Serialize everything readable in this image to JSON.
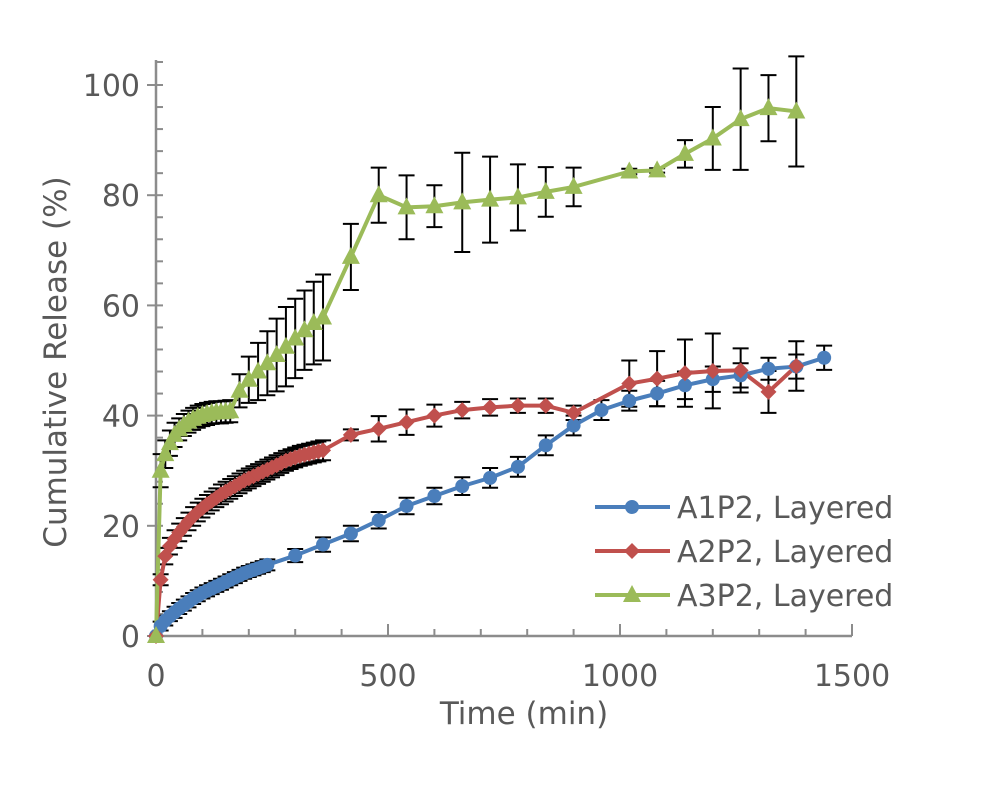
{
  "chart_data": {
    "type": "line",
    "title": "",
    "xlabel": "Time (min)",
    "ylabel": "Cumulative Release (%)",
    "xlim": [
      0,
      1500
    ],
    "ylim": [
      0,
      100
    ],
    "x_ticks": [
      "0",
      "500",
      "1000",
      "1500"
    ],
    "x_tick_values": [
      0,
      500,
      1000,
      1500
    ],
    "x_minor_step": 100,
    "y_ticks": [
      "0",
      "20",
      "40",
      "60",
      "80",
      "100"
    ],
    "y_tick_values": [
      0,
      20,
      40,
      60,
      80,
      100
    ],
    "y_minor_step": 4,
    "grid": false,
    "legend_position": "bottom-right",
    "series": [
      {
        "name": "A1P2, Layered",
        "color": "#4a7ebb",
        "marker": "circle",
        "x": [
          0,
          10,
          20,
          30,
          40,
          50,
          60,
          70,
          80,
          90,
          100,
          110,
          120,
          130,
          140,
          150,
          160,
          170,
          180,
          190,
          200,
          210,
          220,
          230,
          240,
          300,
          360,
          420,
          480,
          540,
          600,
          660,
          720,
          780,
          840,
          900,
          960,
          1020,
          1080,
          1140,
          1200,
          1260,
          1320,
          1380,
          1440
        ],
        "y": [
          0,
          1.8,
          2.8,
          3.6,
          4.3,
          5.0,
          5.6,
          6.2,
          6.8,
          7.3,
          7.8,
          8.2,
          8.6,
          9.0,
          9.4,
          9.8,
          10.2,
          10.6,
          11.0,
          11.4,
          11.7,
          12.0,
          12.3,
          12.6,
          12.9,
          14.6,
          16.6,
          18.6,
          21.0,
          23.6,
          25.4,
          27.2,
          28.7,
          30.7,
          34.6,
          38.2,
          41.0,
          42.7,
          44.0,
          45.5,
          46.6,
          47.3,
          48.5,
          48.9,
          50.5
        ],
        "err": [
          0,
          0.8,
          0.9,
          0.9,
          1.0,
          1.0,
          1.0,
          1.0,
          1.0,
          1.0,
          1.0,
          1.0,
          1.0,
          1.0,
          1.0,
          1.0,
          1.0,
          1.0,
          1.0,
          1.0,
          1.0,
          1.0,
          1.0,
          1.0,
          1.0,
          1.2,
          1.3,
          1.4,
          1.5,
          1.5,
          1.5,
          1.6,
          1.8,
          1.8,
          1.8,
          1.8,
          1.8,
          1.8,
          2.3,
          2.5,
          2.3,
          2.2,
          2.0,
          2.2,
          2.2
        ]
      },
      {
        "name": "A2P2, Layered",
        "color": "#c0504d",
        "marker": "diamond",
        "x": [
          0,
          10,
          20,
          30,
          40,
          50,
          60,
          70,
          80,
          90,
          100,
          110,
          120,
          130,
          140,
          150,
          160,
          170,
          180,
          190,
          200,
          210,
          220,
          230,
          240,
          250,
          260,
          270,
          280,
          290,
          300,
          310,
          320,
          330,
          340,
          350,
          360,
          420,
          480,
          540,
          600,
          660,
          720,
          780,
          840,
          900,
          1020,
          1080,
          1140,
          1200,
          1260,
          1320,
          1380
        ],
        "y": [
          0,
          10.2,
          14.5,
          16.3,
          17.6,
          18.8,
          19.8,
          20.8,
          21.7,
          22.5,
          23.2,
          23.9,
          24.5,
          25.1,
          25.7,
          26.2,
          26.7,
          27.2,
          27.7,
          28.2,
          28.6,
          29.0,
          29.4,
          29.8,
          30.2,
          30.6,
          31.0,
          31.4,
          31.8,
          32.1,
          32.4,
          32.7,
          32.9,
          33.1,
          33.3,
          33.5,
          33.7,
          36.5,
          37.6,
          38.8,
          40.0,
          41.0,
          41.5,
          41.8,
          41.8,
          40.5,
          45.8,
          46.7,
          47.7,
          48.1,
          48.2,
          44.3,
          49.0
        ],
        "err": [
          0,
          1.0,
          1.5,
          1.5,
          1.6,
          1.6,
          1.6,
          1.6,
          1.7,
          1.7,
          1.7,
          1.7,
          1.7,
          1.7,
          1.8,
          1.8,
          1.8,
          1.8,
          1.8,
          1.8,
          1.8,
          1.8,
          1.8,
          1.8,
          1.8,
          1.8,
          1.8,
          1.8,
          1.8,
          1.8,
          1.8,
          1.8,
          1.8,
          1.8,
          1.8,
          1.8,
          1.8,
          1.0,
          2.3,
          2.3,
          2.0,
          1.5,
          1.5,
          1.3,
          1.3,
          1.3,
          4.2,
          5.0,
          6.1,
          6.8,
          4.0,
          3.8,
          4.5
        ]
      },
      {
        "name": "A3P2, Layered",
        "color": "#9bbb59",
        "marker": "triangle",
        "x": [
          0,
          10,
          20,
          30,
          40,
          50,
          60,
          70,
          80,
          90,
          100,
          110,
          120,
          130,
          140,
          150,
          160,
          180,
          200,
          220,
          240,
          260,
          280,
          300,
          320,
          340,
          360,
          420,
          480,
          540,
          600,
          660,
          720,
          780,
          840,
          900,
          1020,
          1080,
          1140,
          1200,
          1260,
          1320,
          1380
        ],
        "y": [
          0,
          30.0,
          33.0,
          35.0,
          36.5,
          37.5,
          38.3,
          38.9,
          39.4,
          39.8,
          40.1,
          40.3,
          40.5,
          40.6,
          40.6,
          40.7,
          40.8,
          44.5,
          46.5,
          48.0,
          49.5,
          51.0,
          52.5,
          54.0,
          55.5,
          56.8,
          57.8,
          68.8,
          80.0,
          77.8,
          78.0,
          78.7,
          79.2,
          79.6,
          80.6,
          81.5,
          84.3,
          84.5,
          87.5,
          90.3,
          93.8,
          95.8,
          95.2
        ],
        "err": [
          0,
          3.0,
          2.5,
          2.3,
          2.2,
          2.0,
          2.0,
          2.0,
          2.0,
          2.0,
          2.0,
          2.0,
          2.0,
          2.0,
          2.0,
          2.0,
          2.0,
          3.0,
          4.2,
          5.2,
          5.8,
          6.6,
          7.2,
          7.2,
          7.2,
          7.5,
          7.8,
          6.0,
          5.0,
          5.8,
          3.8,
          9.0,
          7.8,
          6.0,
          4.5,
          3.5,
          0.5,
          0.4,
          2.5,
          5.7,
          9.2,
          6.0,
          10.0
        ]
      }
    ]
  }
}
